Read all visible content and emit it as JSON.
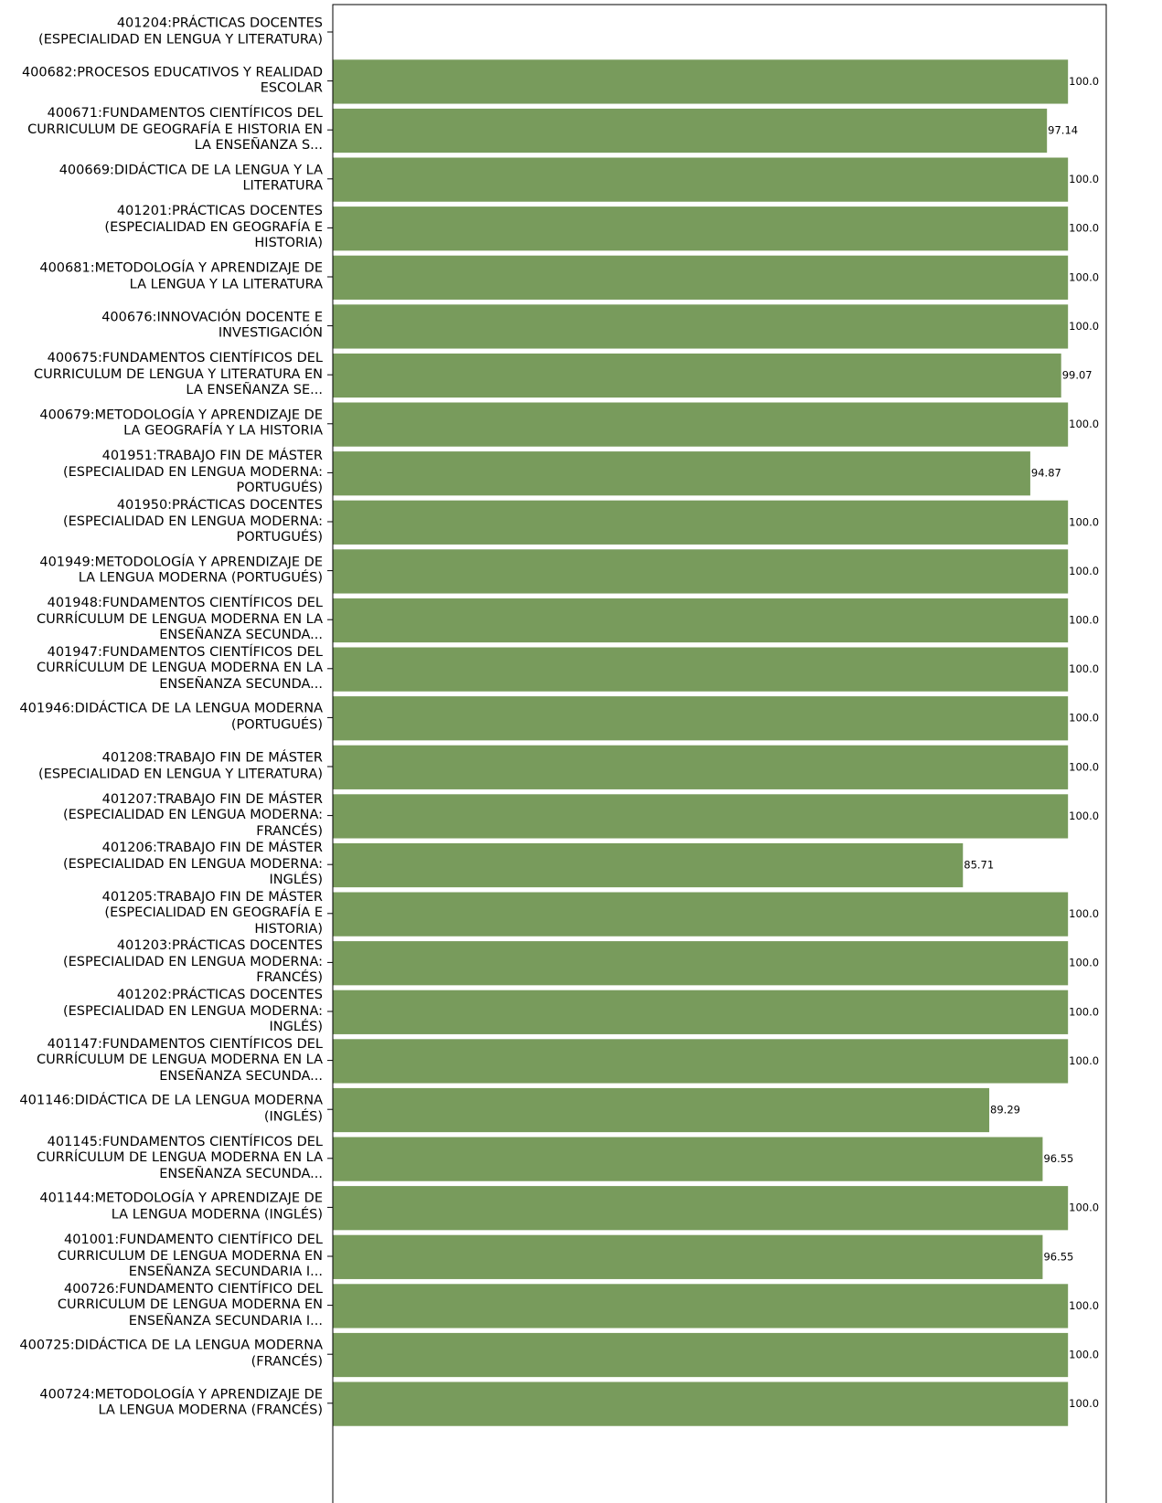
{
  "chart_data": {
    "type": "barh",
    "categories": [
      "401204:PRÁCTICAS DOCENTES\n(ESPECIALIDAD EN LENGUA Y LITERATURA)",
      "400682:PROCESOS EDUCATIVOS Y REALIDAD\nESCOLAR",
      "400671:FUNDAMENTOS CIENTÍFICOS DEL\nCURRICULUM DE GEOGRAFÍA E HISTORIA EN\nLA ENSEÑANZA S...",
      "400669:DIDÁCTICA DE LA LENGUA Y LA\nLITERATURA",
      "401201:PRÁCTICAS DOCENTES\n(ESPECIALIDAD EN GEOGRAFÍA E\nHISTORIA)",
      "400681:METODOLOGÍA Y APRENDIZAJE DE\nLA LENGUA Y LA LITERATURA",
      "400676:INNOVACIÓN DOCENTE E\nINVESTIGACIÓN",
      "400675:FUNDAMENTOS CIENTÍFICOS DEL\nCURRICULUM DE LENGUA Y LITERATURA EN\nLA ENSEÑANZA SE...",
      "400679:METODOLOGÍA Y APRENDIZAJE DE\nLA GEOGRAFÍA Y LA HISTORIA",
      "401951:TRABAJO FIN DE MÁSTER\n(ESPECIALIDAD EN LENGUA MODERNA:\nPORTUGUÉS)",
      "401950:PRÁCTICAS DOCENTES\n(ESPECIALIDAD EN LENGUA MODERNA:\nPORTUGUÉS)",
      "401949:METODOLOGÍA Y APRENDIZAJE DE\nLA LENGUA MODERNA (PORTUGUÉS)",
      "401948:FUNDAMENTOS CIENTÍFICOS DEL\nCURRÍCULUM DE LENGUA MODERNA EN LA\nENSEÑANZA SECUNDA...",
      "401947:FUNDAMENTOS CIENTÍFICOS DEL\nCURRÍCULUM DE LENGUA MODERNA EN LA\nENSEÑANZA SECUNDA...",
      "401946:DIDÁCTICA DE LA LENGUA MODERNA\n(PORTUGUÉS)",
      "401208:TRABAJO FIN DE MÁSTER\n(ESPECIALIDAD EN LENGUA Y LITERATURA)",
      "401207:TRABAJO FIN DE MÁSTER\n(ESPECIALIDAD EN LENGUA MODERNA:\nFRANCÉS)",
      "401206:TRABAJO FIN DE MÁSTER\n(ESPECIALIDAD EN LENGUA MODERNA:\nINGLÉS)",
      "401205:TRABAJO FIN DE MÁSTER\n(ESPECIALIDAD EN GEOGRAFÍA E\nHISTORIA)",
      "401203:PRÁCTICAS DOCENTES\n(ESPECIALIDAD EN LENGUA MODERNA:\nFRANCÉS)",
      "401202:PRÁCTICAS DOCENTES\n(ESPECIALIDAD EN LENGUA MODERNA:\nINGLÉS)",
      "401147:FUNDAMENTOS CIENTÍFICOS DEL\nCURRÍCULUM DE LENGUA MODERNA EN LA\nENSEÑANZA SECUNDA...",
      "401146:DIDÁCTICA DE LA LENGUA MODERNA\n(INGLÉS)",
      "401145:FUNDAMENTOS CIENTÍFICOS DEL\nCURRÍCULUM DE LENGUA MODERNA EN LA\nENSEÑANZA SECUNDA...",
      "401144:METODOLOGÍA Y APRENDIZAJE DE\nLA LENGUA MODERNA (INGLÉS)",
      "401001:FUNDAMENTO CIENTÍFICO DEL\nCURRICULUM DE LENGUA MODERNA EN\nENSEÑANZA SECUNDARIA I...",
      "400726:FUNDAMENTO CIENTÍFICO DEL\nCURRICULUM DE LENGUA MODERNA EN\nENSEÑANZA SECUNDARIA I...",
      "400725:DIDÁCTICA DE LA LENGUA MODERNA\n(FRANCÉS)",
      "400724:METODOLOGÍA Y APRENDIZAJE DE\nLA LENGUA MODERNA (FRANCÉS)"
    ],
    "values": [
      null,
      100,
      97.14,
      100,
      100,
      100,
      100,
      99.07,
      100,
      94.87,
      100,
      100,
      100,
      100,
      100,
      100,
      100,
      85.71,
      100,
      100,
      100,
      100,
      89.29,
      96.55,
      100,
      96.55,
      100,
      100,
      100
    ],
    "value_labels": [
      null,
      "100.0",
      "97.14",
      "100.0",
      "100.0",
      "100.0",
      "100.0",
      "99.07",
      "100.0",
      "94.87",
      "100.0",
      "100.0",
      "100.0",
      "100.0",
      "100.0",
      "100.0",
      "100.0",
      "85.71",
      "100.0",
      "100.0",
      "100.0",
      "100.0",
      "89.29",
      "96.55",
      "100.0",
      "96.55",
      "100.0",
      "100.0",
      "100.0"
    ],
    "color": "#789b5c",
    "xlim": [
      0,
      105.2
    ]
  }
}
